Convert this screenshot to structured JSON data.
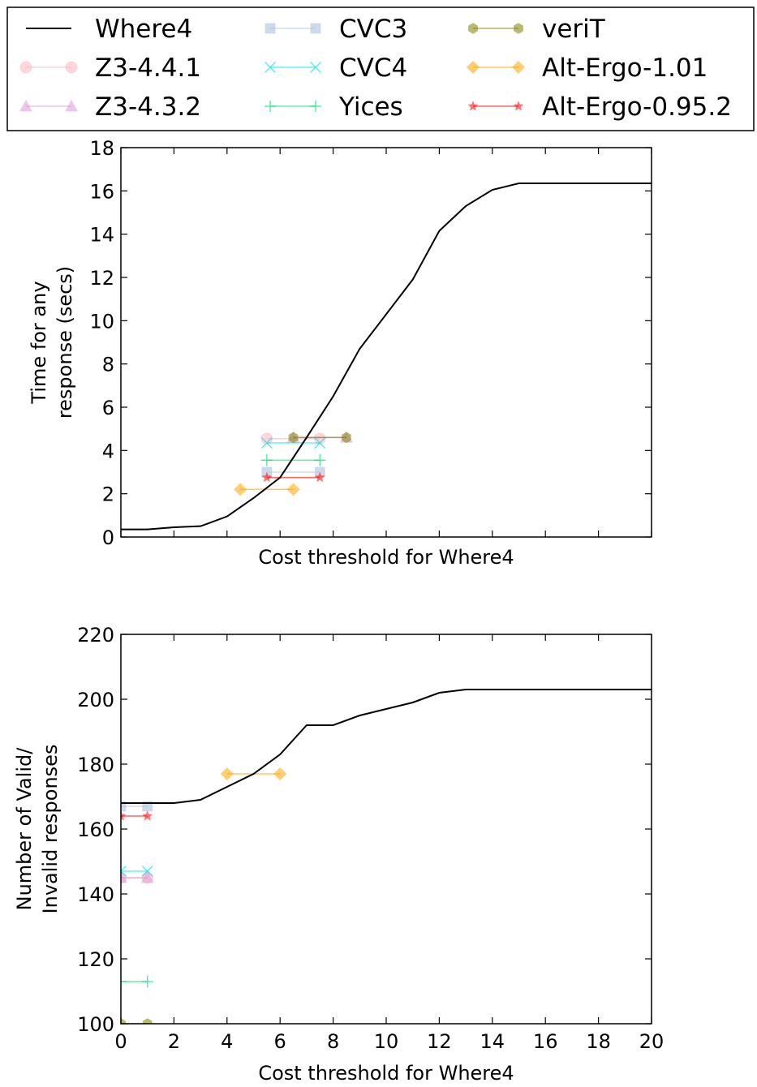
{
  "legend": {
    "entries": [
      {
        "label": "Where4",
        "color": "#000000",
        "marker": "none"
      },
      {
        "label": "Z3-4.4.1",
        "color": "#ffb6c1",
        "marker": "circle"
      },
      {
        "label": "Z3-4.3.2",
        "color": "#dd99dd",
        "marker": "triangle"
      },
      {
        "label": "CVC3",
        "color": "#b0c4de",
        "marker": "square"
      },
      {
        "label": "CVC4",
        "color": "#00e5ee",
        "marker": "x"
      },
      {
        "label": "Yices",
        "color": "#00e676",
        "marker": "plus"
      },
      {
        "label": "veriT",
        "color": "#808000",
        "marker": "hexagon"
      },
      {
        "label": "Alt-Ergo-1.01",
        "color": "#ffa500",
        "marker": "diamond"
      },
      {
        "label": "Alt-Ergo-0.95.2",
        "color": "#ff0000",
        "marker": "star"
      }
    ]
  },
  "chart_data": [
    {
      "type": "line",
      "title": "",
      "xlabel": "Cost threshold for Where4",
      "ylabel": "Time for any\nresponse (secs)",
      "xlim": [
        0,
        20
      ],
      "ylim": [
        0,
        18
      ],
      "xticks_visible": false,
      "yticks": [
        0,
        2,
        4,
        6,
        8,
        10,
        12,
        14,
        16,
        18
      ],
      "grid": false,
      "series": [
        {
          "name": "Where4",
          "color": "#000000",
          "marker": "none",
          "x": [
            0,
            1,
            2,
            3,
            4,
            5,
            6,
            7,
            8,
            9,
            10,
            11,
            12,
            13,
            14,
            15,
            16,
            17,
            18,
            19,
            20
          ],
          "y": [
            0.35,
            0.35,
            0.45,
            0.5,
            0.95,
            1.8,
            2.75,
            4.6,
            6.5,
            8.7,
            10.3,
            11.9,
            14.15,
            15.3,
            16.05,
            16.35,
            16.35,
            16.35,
            16.35,
            16.35,
            16.35
          ]
        },
        {
          "name": "Z3-4.4.1",
          "color": "#ffb6c1",
          "marker": "circle",
          "x": [
            5.5,
            7.5
          ],
          "y": [
            4.55,
            4.55
          ]
        },
        {
          "name": "Z3-4.3.2",
          "color": "#dd99dd",
          "marker": "triangle",
          "x": [
            6.5,
            8.5
          ],
          "y": [
            4.6,
            4.6
          ]
        },
        {
          "name": "CVC3",
          "color": "#b0c4de",
          "marker": "square",
          "x": [
            5.5,
            7.5
          ],
          "y": [
            3.0,
            3.0
          ]
        },
        {
          "name": "CVC4",
          "color": "#00e5ee",
          "marker": "x",
          "x": [
            5.5,
            7.5
          ],
          "y": [
            4.35,
            4.35
          ]
        },
        {
          "name": "Yices",
          "color": "#00e676",
          "marker": "plus",
          "x": [
            5.5,
            7.5
          ],
          "y": [
            3.55,
            3.55
          ]
        },
        {
          "name": "veriT",
          "color": "#808000",
          "marker": "hexagon",
          "x": [
            6.5,
            8.5
          ],
          "y": [
            4.6,
            4.6
          ]
        },
        {
          "name": "Alt-Ergo-1.01",
          "color": "#ffa500",
          "marker": "diamond",
          "x": [
            4.5,
            6.5
          ],
          "y": [
            2.2,
            2.2
          ]
        },
        {
          "name": "Alt-Ergo-0.95.2",
          "color": "#ff0000",
          "marker": "star",
          "x": [
            5.5,
            7.5
          ],
          "y": [
            2.75,
            2.75
          ]
        }
      ]
    },
    {
      "type": "line",
      "title": "",
      "xlabel": "Cost threshold for Where4",
      "ylabel": "Number of Valid/\nInvalid responses",
      "xlim": [
        0,
        20
      ],
      "ylim": [
        100,
        220
      ],
      "xticks": [
        0,
        2,
        4,
        6,
        8,
        10,
        12,
        14,
        16,
        18,
        20
      ],
      "yticks": [
        100,
        120,
        140,
        160,
        180,
        200,
        220
      ],
      "grid": false,
      "series": [
        {
          "name": "Where4",
          "color": "#000000",
          "marker": "none",
          "x": [
            0,
            1,
            2,
            3,
            4,
            5,
            6,
            7,
            8,
            9,
            10,
            11,
            12,
            13,
            14,
            15,
            16,
            17,
            18,
            19,
            20
          ],
          "y": [
            168,
            168,
            168,
            169,
            173,
            177,
            183,
            192,
            192,
            195,
            197,
            199,
            202,
            203,
            203,
            203,
            203,
            203,
            203,
            203,
            203
          ]
        },
        {
          "name": "Z3-4.4.1",
          "color": "#ffb6c1",
          "marker": "circle",
          "x": [
            0,
            1
          ],
          "y": [
            145,
            145
          ]
        },
        {
          "name": "Z3-4.3.2",
          "color": "#dd99dd",
          "marker": "triangle",
          "x": [
            0,
            1
          ],
          "y": [
            145,
            145
          ]
        },
        {
          "name": "CVC3",
          "color": "#b0c4de",
          "marker": "square",
          "x": [
            0,
            1
          ],
          "y": [
            167,
            167
          ]
        },
        {
          "name": "CVC4",
          "color": "#00e5ee",
          "marker": "x",
          "x": [
            0,
            1
          ],
          "y": [
            147,
            147
          ]
        },
        {
          "name": "Yices",
          "color": "#00e676",
          "marker": "plus",
          "x": [
            0,
            1
          ],
          "y": [
            113,
            113
          ]
        },
        {
          "name": "veriT",
          "color": "#808000",
          "marker": "hexagon",
          "x": [
            0,
            1
          ],
          "y": [
            100,
            100
          ]
        },
        {
          "name": "Alt-Ergo-1.01",
          "color": "#ffa500",
          "marker": "diamond",
          "x": [
            4,
            6
          ],
          "y": [
            177,
            177
          ]
        },
        {
          "name": "Alt-Ergo-0.95.2",
          "color": "#ff0000",
          "marker": "star",
          "x": [
            0,
            1
          ],
          "y": [
            164,
            164
          ]
        }
      ]
    }
  ]
}
